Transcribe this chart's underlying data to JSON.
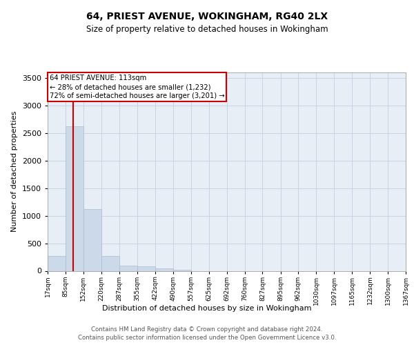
{
  "title_line1": "64, PRIEST AVENUE, WOKINGHAM, RG40 2LX",
  "title_line2": "Size of property relative to detached houses in Wokingham",
  "xlabel": "Distribution of detached houses by size in Wokingham",
  "ylabel": "Number of detached properties",
  "footer_line1": "Contains HM Land Registry data © Crown copyright and database right 2024.",
  "footer_line2": "Contains public sector information licensed under the Open Government Licence v3.0.",
  "bar_color": "#ccd9e8",
  "bar_edge_color": "#a8bfd4",
  "grid_color": "#c8d4e4",
  "annotation_box_color": "#cc0000",
  "property_line_color": "#cc0000",
  "property_size": 113,
  "annotation_line1": "64 PRIEST AVENUE: 113sqm",
  "annotation_line2": "← 28% of detached houses are smaller (1,232)",
  "annotation_line3": "72% of semi-detached houses are larger (3,201) →",
  "bin_edges": [
    17,
    85,
    152,
    220,
    287,
    355,
    422,
    490,
    557,
    625,
    692,
    760,
    827,
    895,
    962,
    1030,
    1097,
    1165,
    1232,
    1300,
    1367
  ],
  "bin_labels": [
    "17sqm",
    "85sqm",
    "152sqm",
    "220sqm",
    "287sqm",
    "355sqm",
    "422sqm",
    "490sqm",
    "557sqm",
    "625sqm",
    "692sqm",
    "760sqm",
    "827sqm",
    "895sqm",
    "962sqm",
    "1030sqm",
    "1097sqm",
    "1165sqm",
    "1232sqm",
    "1300sqm",
    "1367sqm"
  ],
  "bar_heights": [
    270,
    2620,
    1120,
    270,
    90,
    80,
    40,
    20,
    0,
    0,
    0,
    0,
    0,
    0,
    0,
    0,
    0,
    0,
    0,
    0
  ],
  "ylim": [
    0,
    3600
  ],
  "yticks": [
    0,
    500,
    1000,
    1500,
    2000,
    2500,
    3000,
    3500
  ],
  "bg_color": "#e8eef6"
}
